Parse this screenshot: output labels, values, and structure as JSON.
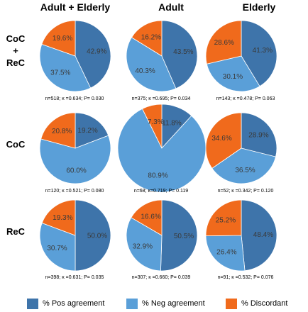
{
  "columns": [
    "Adult + Elderly",
    "Adult",
    "Elderly"
  ],
  "rows": [
    {
      "label_lines": [
        "CoC",
        "+",
        "ReC"
      ]
    },
    {
      "label_lines": [
        "CoC"
      ]
    },
    {
      "label_lines": [
        "ReC"
      ]
    }
  ],
  "legend": [
    {
      "label": "% Pos agreement",
      "color": "#3e74aa"
    },
    {
      "label": "% Neg agreement",
      "color": "#5a9fd8"
    },
    {
      "label": "% Discordant",
      "color": "#f06a1c"
    }
  ],
  "chart_data": [
    {
      "type": "pie",
      "row": "CoC + ReC",
      "column": "Adult + Elderly",
      "slices": [
        {
          "name": "% Pos agreement",
          "value": 42.9,
          "label": "42.9%"
        },
        {
          "name": "% Neg agreement",
          "value": 37.5,
          "label": "37.5%"
        },
        {
          "name": "% Discordant",
          "value": 19.6,
          "label": "19.6%"
        }
      ],
      "stats": "n=518; κ =0.634; P= 0.030"
    },
    {
      "type": "pie",
      "row": "CoC + ReC",
      "column": "Adult",
      "slices": [
        {
          "name": "% Pos agreement",
          "value": 43.5,
          "label": "43.5%"
        },
        {
          "name": "% Neg agreement",
          "value": 40.3,
          "label": "40.3%"
        },
        {
          "name": "% Discordant",
          "value": 16.2,
          "label": "16.2%"
        }
      ],
      "stats": "n=375; κ =0.695; P= 0.034"
    },
    {
      "type": "pie",
      "row": "CoC + ReC",
      "column": "Elderly",
      "slices": [
        {
          "name": "% Pos agreement",
          "value": 41.3,
          "label": "41.3%"
        },
        {
          "name": "% Neg agreement",
          "value": 30.1,
          "label": "30.1%"
        },
        {
          "name": "% Discordant",
          "value": 28.6,
          "label": "28.6%"
        }
      ],
      "stats": "n=143; κ =0.478; P= 0.063"
    },
    {
      "type": "pie",
      "row": "CoC",
      "column": "Adult + Elderly",
      "slices": [
        {
          "name": "% Pos agreement",
          "value": 19.2,
          "label": "19.2%"
        },
        {
          "name": "% Neg agreement",
          "value": 60.0,
          "label": "60.0%"
        },
        {
          "name": "% Discordant",
          "value": 20.8,
          "label": "20.8%"
        }
      ],
      "stats": "n=120; κ =0.521; P= 0.080"
    },
    {
      "type": "pie",
      "row": "CoC",
      "column": "Adult",
      "slices": [
        {
          "name": "% Pos agreement",
          "value": 11.8,
          "label": "11.8%"
        },
        {
          "name": "% Neg agreement",
          "value": 80.9,
          "label": "80.9%"
        },
        {
          "name": "% Discordant",
          "value": 7.3,
          "label": "7.3%"
        }
      ],
      "stats": "n=68; κ=0.719; P= 0.119"
    },
    {
      "type": "pie",
      "row": "CoC",
      "column": "Elderly",
      "slices": [
        {
          "name": "% Pos agreement",
          "value": 28.9,
          "label": "28.9%"
        },
        {
          "name": "% Neg agreement",
          "value": 36.5,
          "label": "36.5%"
        },
        {
          "name": "% Discordant",
          "value": 34.6,
          "label": "34.6%"
        }
      ],
      "stats": "n=52; κ =0.342; P= 0.120"
    },
    {
      "type": "pie",
      "row": "ReC",
      "column": "Adult + Elderly",
      "slices": [
        {
          "name": "% Pos agreement",
          "value": 50.0,
          "label": "50.0%"
        },
        {
          "name": "% Neg agreement",
          "value": 30.7,
          "label": "30.7%"
        },
        {
          "name": "% Discordant",
          "value": 19.3,
          "label": "19.3%"
        }
      ],
      "stats": "n=398; κ =0.631; P= 0.035"
    },
    {
      "type": "pie",
      "row": "ReC",
      "column": "Adult",
      "slices": [
        {
          "name": "% Pos agreement",
          "value": 50.5,
          "label": "50.5%"
        },
        {
          "name": "% Neg agreement",
          "value": 32.9,
          "label": "32.9%"
        },
        {
          "name": "% Discordant",
          "value": 16.6,
          "label": "16.6%"
        }
      ],
      "stats": "n=307; κ =0.660; P= 0.039"
    },
    {
      "type": "pie",
      "row": "ReC",
      "column": "Elderly",
      "slices": [
        {
          "name": "% Pos agreement",
          "value": 48.4,
          "label": "48.4%"
        },
        {
          "name": "% Neg agreement",
          "value": 26.4,
          "label": "26.4%"
        },
        {
          "name": "% Discordant",
          "value": 25.2,
          "label": "25.2%"
        }
      ],
      "stats": "n=91; κ =0.532; P= 0.076"
    }
  ]
}
